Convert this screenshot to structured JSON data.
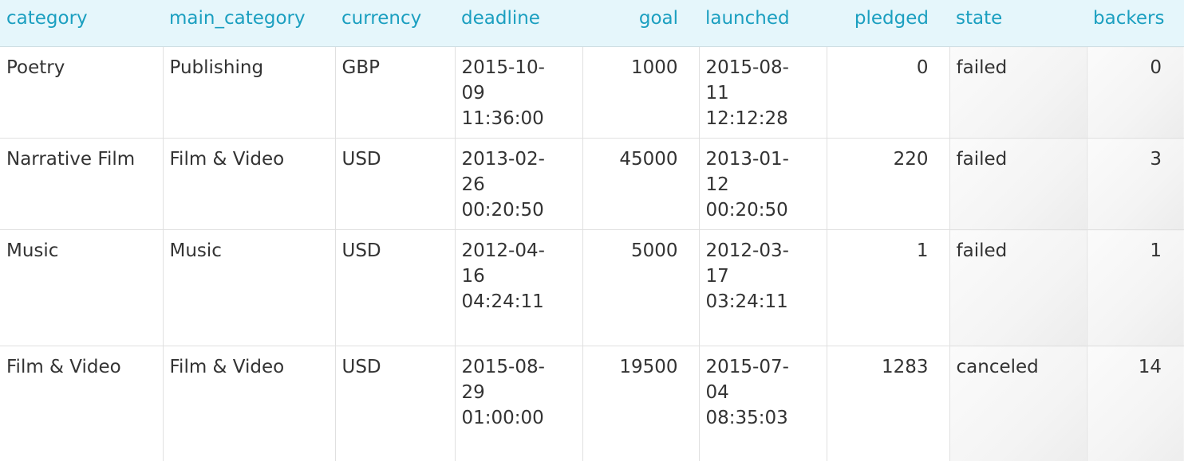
{
  "table": {
    "columns": [
      {
        "key": "category",
        "label": "category",
        "align": "left"
      },
      {
        "key": "main_category",
        "label": "main_category",
        "align": "left"
      },
      {
        "key": "currency",
        "label": "currency",
        "align": "left"
      },
      {
        "key": "deadline",
        "label": "deadline",
        "align": "left"
      },
      {
        "key": "goal",
        "label": "goal",
        "align": "right"
      },
      {
        "key": "launched",
        "label": "launched",
        "align": "left"
      },
      {
        "key": "pledged",
        "label": "pledged",
        "align": "right"
      },
      {
        "key": "state",
        "label": "state",
        "align": "left"
      },
      {
        "key": "backers",
        "label": "backers",
        "align": "right"
      }
    ],
    "rows": [
      {
        "category": "Poetry",
        "main_category": "Publishing",
        "currency": "GBP",
        "deadline": "2015-10-09 11:36:00",
        "goal": "1000",
        "launched": "2015-08-11 12:12:28",
        "pledged": "0",
        "state": "failed",
        "backers": "0"
      },
      {
        "category": "Narrative Film",
        "main_category": "Film & Video",
        "currency": "USD",
        "deadline": "2013-02-26 00:20:50",
        "goal": "45000",
        "launched": "2013-01-12 00:20:50",
        "pledged": "220",
        "state": "failed",
        "backers": "3"
      },
      {
        "category": "Music",
        "main_category": "Music",
        "currency": "USD",
        "deadline": "2012-04-16 04:24:11",
        "goal": "5000",
        "launched": "2012-03-17 03:24:11",
        "pledged": "1",
        "state": "failed",
        "backers": "1"
      },
      {
        "category": "Film & Video",
        "main_category": "Film & Video",
        "currency": "USD",
        "deadline": "2015-08-29 01:00:00",
        "goal": "19500",
        "launched": "2015-07-04 08:35:03",
        "pledged": "1283",
        "state": "canceled",
        "backers": "14"
      }
    ]
  },
  "colors": {
    "header_background": "#e5f6fb",
    "header_text": "#1b9fc0",
    "cell_text": "#333333",
    "grid_line": "#e0e0e0"
  }
}
